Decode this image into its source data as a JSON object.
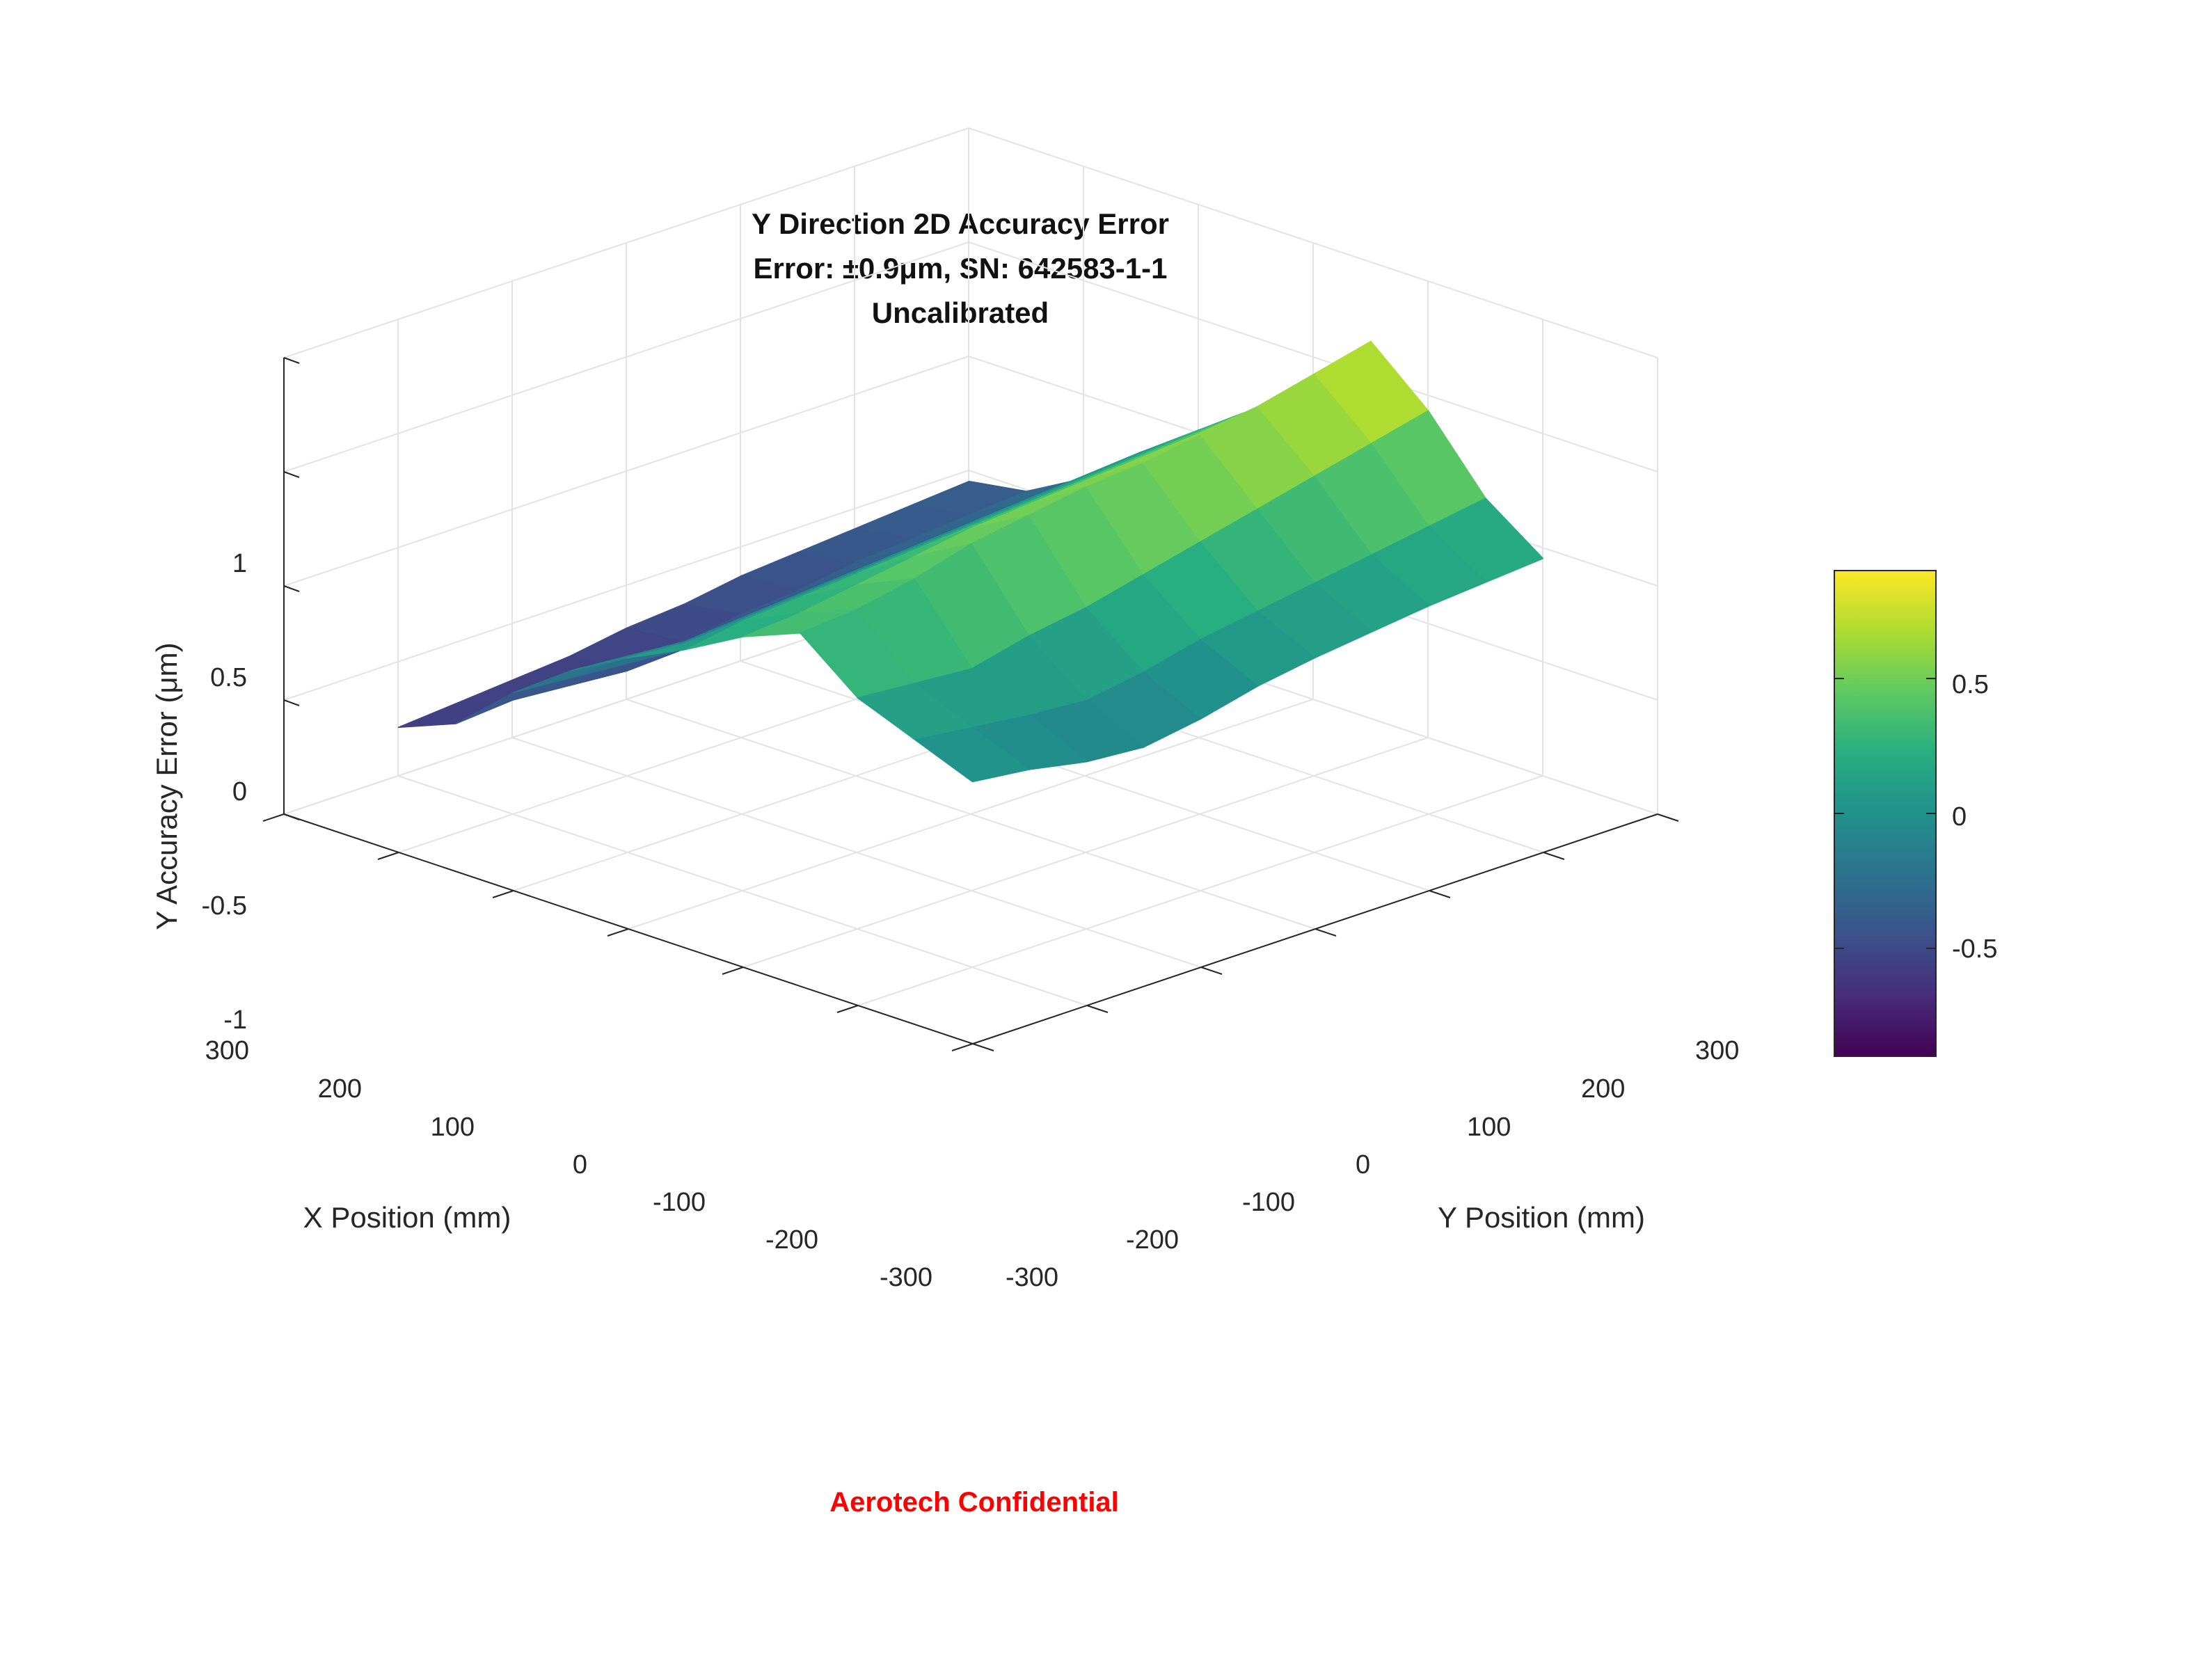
{
  "chart_data": {
    "type": "surface",
    "title_lines": [
      "Y Direction 2D Accuracy Error",
      "Error: ±0.9μm, SN: 642583-1-1",
      "Uncalibrated"
    ],
    "xlabel": "X Position (mm)",
    "ylabel": "Y Position (mm)",
    "zlabel": "Y Accuracy Error (μm)",
    "xlim": [
      -300,
      300
    ],
    "ylim": [
      -300,
      300
    ],
    "zlim": [
      -1,
      1
    ],
    "x_ticks": [
      "300",
      "200",
      "100",
      "0",
      "-100",
      "-200",
      "-300"
    ],
    "y_ticks": [
      "-300",
      "-200",
      "-100",
      "0",
      "100",
      "200",
      "300"
    ],
    "z_ticks": [
      "-1",
      "-0.5",
      "0",
      "0.5",
      "1"
    ],
    "grid": true,
    "colormap": "viridis",
    "colorbar": {
      "ticks": [
        "0.5",
        "0",
        "-0.5"
      ],
      "range": [
        -0.9,
        0.9
      ]
    },
    "x": [
      -250,
      -200,
      -150,
      -100,
      -50,
      0,
      50,
      100,
      150,
      200,
      250
    ],
    "y": [
      -250,
      -200,
      -150,
      -100,
      -50,
      0,
      50,
      100,
      150,
      200,
      250
    ],
    "z": [
      [
        -0.02,
        0.08,
        0.18,
        0.38,
        0.28,
        0.14,
        0.02,
        -0.12,
        -0.3,
        -0.52,
        -0.62
      ],
      [
        -0.05,
        0.05,
        0.16,
        0.4,
        0.3,
        0.18,
        0.0,
        -0.14,
        -0.32,
        -0.5,
        -0.6
      ],
      [
        -0.1,
        0.02,
        0.14,
        0.45,
        0.34,
        0.2,
        0.02,
        -0.16,
        -0.34,
        -0.52,
        -0.58
      ],
      [
        -0.12,
        0.0,
        0.2,
        0.52,
        0.38,
        0.22,
        0.04,
        -0.14,
        -0.36,
        -0.54,
        -0.56
      ],
      [
        -0.08,
        0.04,
        0.24,
        0.56,
        0.42,
        0.24,
        0.06,
        -0.12,
        -0.34,
        -0.5,
        -0.52
      ],
      [
        -0.02,
        0.1,
        0.3,
        0.6,
        0.44,
        0.26,
        0.08,
        -0.1,
        -0.3,
        -0.46,
        -0.5
      ],
      [
        0.02,
        0.14,
        0.36,
        0.62,
        0.46,
        0.28,
        0.1,
        -0.08,
        -0.28,
        -0.44,
        -0.46
      ],
      [
        0.05,
        0.18,
        0.42,
        0.66,
        0.48,
        0.3,
        0.12,
        -0.06,
        -0.26,
        -0.4,
        -0.44
      ],
      [
        0.08,
        0.22,
        0.48,
        0.7,
        0.5,
        0.32,
        0.14,
        -0.04,
        -0.24,
        -0.38,
        -0.42
      ],
      [
        0.1,
        0.26,
        0.54,
        0.76,
        0.52,
        0.34,
        0.16,
        -0.02,
        -0.22,
        -0.36,
        -0.4
      ],
      [
        0.12,
        0.3,
        0.6,
        0.82,
        0.56,
        0.36,
        0.18,
        0.0,
        -0.2,
        -0.34,
        -0.38
      ]
    ]
  },
  "footer": {
    "confidential": "Aerotech Confidential",
    "confidential_color": "#ff0000"
  }
}
